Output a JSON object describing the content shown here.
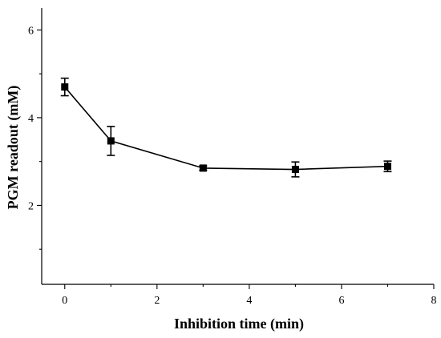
{
  "chart_data": {
    "type": "line",
    "title": "",
    "xlabel": "Inhibition time (min)",
    "ylabel": "PGM readout (mM)",
    "xlim": [
      -0.5,
      8
    ],
    "ylim": [
      0.2,
      6.5
    ],
    "x_ticks": [
      0,
      2,
      4,
      6,
      8
    ],
    "x_tick_labels": [
      "0",
      "2",
      "4",
      "6",
      "8"
    ],
    "y_ticks": [
      2,
      4,
      6
    ],
    "y_tick_labels": [
      "2",
      "4",
      "6"
    ],
    "grid": false,
    "marker": "square",
    "series": [
      {
        "x": [
          0,
          1,
          3,
          5,
          7
        ],
        "y": [
          4.7,
          3.47,
          2.85,
          2.82,
          2.89
        ],
        "error": [
          0.2,
          0.33,
          0.05,
          0.17,
          0.12
        ]
      }
    ],
    "colors": {
      "line": "#000000",
      "marker": "#000000",
      "axis": "#000000"
    }
  }
}
